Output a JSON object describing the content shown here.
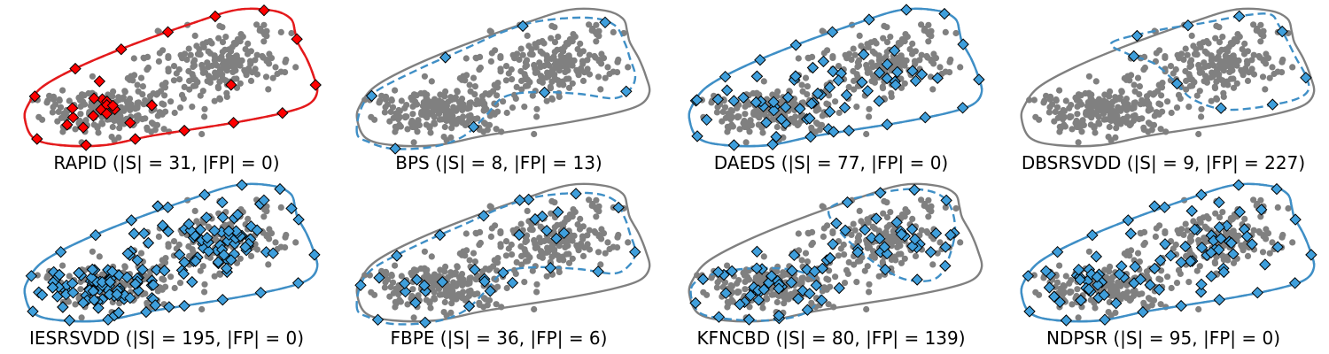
{
  "figure": {
    "colors": {
      "background_points": "#808080",
      "true_boundary": "#808080",
      "method_boundary": "#3f8fc6",
      "rapid_boundary": "#e41a1c",
      "selected_rapid": "#ff0000",
      "selected_other": "#3f9fdc",
      "marker_edge": "#000000"
    },
    "marker": "diamond"
  },
  "chart_data": [
    {
      "type": "scatter",
      "title": "RAPID (|S| = 31, |FP| = 0)",
      "method": "RAPID",
      "selected_count": 31,
      "false_positives": 0,
      "boundary_match": "exact",
      "boundary_color": "red"
    },
    {
      "type": "scatter",
      "title": "BPS (|S| = 8, |FP| = 13)",
      "method": "BPS",
      "selected_count": 8,
      "false_positives": 13,
      "boundary_match": "smaller"
    },
    {
      "type": "scatter",
      "title": "DAEDS (|S| = 77, |FP| = 0)",
      "method": "DAEDS",
      "selected_count": 77,
      "false_positives": 0,
      "boundary_match": "exact"
    },
    {
      "type": "scatter",
      "title": "DBSRSVDD (|S| = 9, |FP| = 227)",
      "method": "DBSRSVDD",
      "selected_count": 9,
      "false_positives": 227,
      "boundary_match": "upper-right"
    },
    {
      "type": "scatter",
      "title": "IESRSVDD (|S| = 195, |FP| = 0)",
      "method": "IESRSVDD",
      "selected_count": 195,
      "false_positives": 0,
      "boundary_match": "exact"
    },
    {
      "type": "scatter",
      "title": "FBPE (|S| = 36, |FP| = 6)",
      "method": "FBPE",
      "selected_count": 36,
      "false_positives": 6,
      "boundary_match": "smaller"
    },
    {
      "type": "scatter",
      "title": "KFNCBD (|S| = 80, |FP| = 139)",
      "method": "KFNCBD",
      "selected_count": 80,
      "false_positives": 139,
      "boundary_match": "two-clusters"
    },
    {
      "type": "scatter",
      "title": "NDPSR (|S| = 95, |FP| = 0)",
      "method": "NDPSR",
      "selected_count": 95,
      "false_positives": 0,
      "boundary_match": "exact"
    }
  ]
}
